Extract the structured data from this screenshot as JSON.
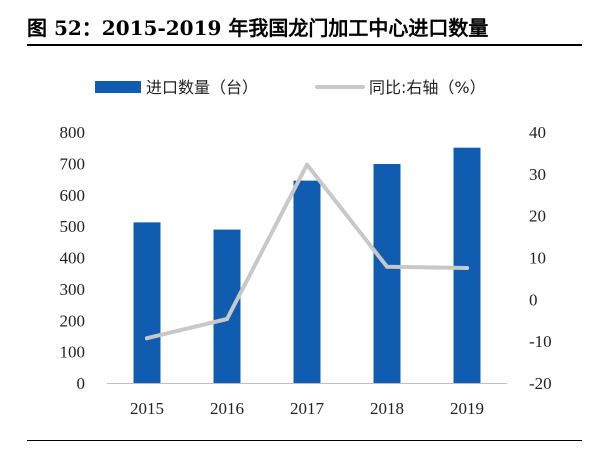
{
  "title": "图  52：2015-2019 年我国龙门加工中心进口数量",
  "chart_data": {
    "type": "bar",
    "categories": [
      "2015",
      "2016",
      "2017",
      "2018",
      "2019"
    ],
    "series": [
      {
        "name": "进口数量（台）",
        "type": "bar",
        "axis": "left",
        "color": "#0f5cb0",
        "values": [
          512,
          489,
          645,
          698,
          750
        ]
      },
      {
        "name": "同比:右轴（%）",
        "type": "line",
        "axis": "right",
        "color": "#c8c8c8",
        "values": [
          -9.3,
          -4.7,
          32.2,
          7.8,
          7.5
        ]
      }
    ],
    "y_left": {
      "ylim": [
        0,
        800
      ],
      "ticks": [
        "800",
        "700",
        "600",
        "500",
        "400",
        "300",
        "200",
        "100",
        "0"
      ]
    },
    "y_right": {
      "ylim": [
        -20,
        40
      ],
      "ticks": [
        "40",
        "30",
        "20",
        "10",
        "0",
        "-10",
        "-20"
      ]
    },
    "legend_position": "top",
    "grid": false
  }
}
